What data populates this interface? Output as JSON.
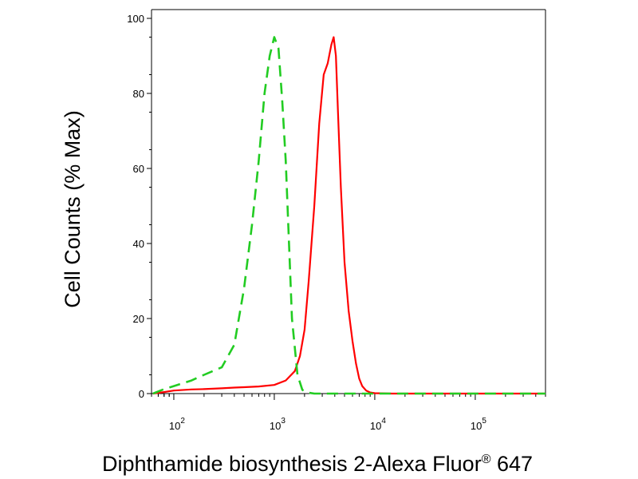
{
  "chart_data": {
    "type": "line",
    "title": "",
    "xlabel": "Diphthamide biosynthesis 2-Alexa Fluor",
    "xlabel_sup": "®",
    "xlabel_tail": " 647",
    "ylabel": "Cell Counts (% Max)",
    "x_scale": "log",
    "xlim": [
      60,
      500000
    ],
    "ylim": [
      0,
      100
    ],
    "y_ticks": [
      0,
      20,
      40,
      60,
      80,
      100
    ],
    "y_tick_labels": [
      "0",
      "20",
      "40",
      "60",
      "80",
      "100"
    ],
    "x_major_ticks": [
      100,
      1000,
      10000,
      100000
    ],
    "x_tick_bases": [
      "10",
      "10",
      "10",
      "10"
    ],
    "x_tick_exponents": [
      "2",
      "3",
      "4",
      "5"
    ],
    "grid": false,
    "legend": "none",
    "series": [
      {
        "color": "#ff0000",
        "style": "solid",
        "x": [
          62,
          80,
          100,
          150,
          200,
          300,
          400,
          500,
          700,
          1000,
          1300,
          1600,
          1800,
          2000,
          2200,
          2500,
          2800,
          3100,
          3400,
          3700,
          3900,
          4100,
          4300,
          4600,
          5000,
          5500,
          6000,
          6500,
          7000,
          7500,
          8200,
          9000,
          10000,
          15000,
          30000,
          100000,
          500000
        ],
        "y": [
          0,
          0.4,
          0.8,
          1.1,
          1.2,
          1.4,
          1.6,
          1.7,
          1.9,
          2.3,
          3.5,
          6,
          10,
          17,
          30,
          50,
          72,
          85,
          88,
          93,
          95,
          90,
          75,
          55,
          35,
          22,
          14,
          8,
          4,
          2,
          0.8,
          0.3,
          0.1,
          0,
          0,
          0,
          0
        ]
      },
      {
        "color": "#22cc22",
        "style": "dashed",
        "x": [
          62,
          80,
          100,
          150,
          200,
          300,
          400,
          500,
          600,
          700,
          800,
          900,
          1000,
          1100,
          1200,
          1300,
          1400,
          1500,
          1700,
          1900,
          2100,
          2500,
          3000,
          5000,
          500000
        ],
        "y": [
          0,
          1.2,
          2,
          3.5,
          5,
          7,
          13,
          28,
          45,
          62,
          80,
          90,
          95,
          92,
          78,
          62,
          40,
          20,
          5,
          1,
          0.3,
          0,
          0,
          0,
          0
        ]
      }
    ]
  }
}
